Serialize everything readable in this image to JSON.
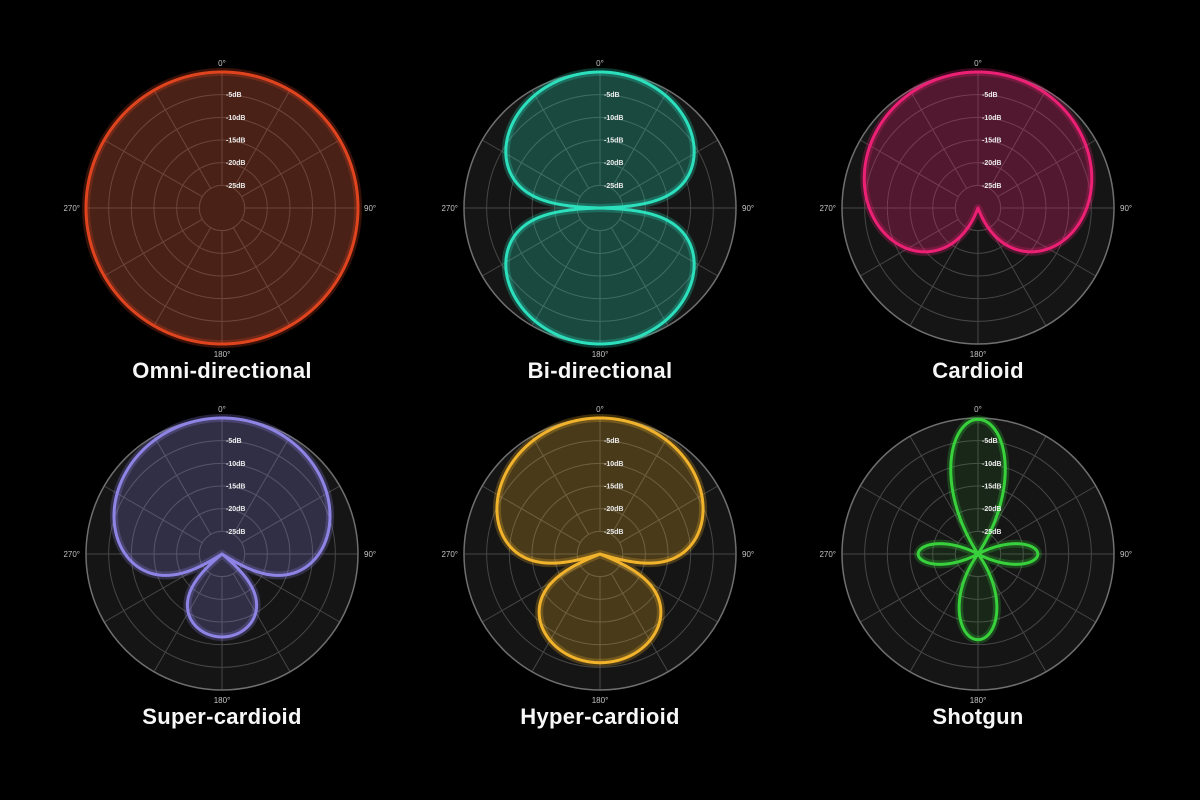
{
  "page": {
    "background_color": "#000000",
    "description": "Six microphone polar pickup patterns arranged in a 3x2 grid"
  },
  "grid_style": {
    "disc_color": "#151515",
    "ring_color": "#464646",
    "outer_ring_color": "#6f6f6f",
    "db_label_color": "#ececec",
    "angle_label_color": "#c4c4c4",
    "rings": 6,
    "spokes_deg_step": 30
  },
  "chart_data": [
    {
      "type": "polar_line",
      "title": "Omni-directional",
      "stroke_color": "#e0441f",
      "fill_opacity": 0.26,
      "pattern": "omni",
      "formula": "r(theta) = 1",
      "polar_params": {
        "a": 1.0,
        "b": 0.0
      },
      "radial_axis": {
        "unit": "dB",
        "min_db": -30,
        "max_db": 0,
        "tick_labels": [
          "-5dB",
          "-10dB",
          "-15dB",
          "-20dB",
          "-25dB"
        ]
      },
      "angle_labels": {
        "top": "0°",
        "right": "90°",
        "bottom": "180°",
        "left": "270°"
      }
    },
    {
      "type": "polar_line",
      "title": "Bi-directional",
      "stroke_color": "#2ce0bd",
      "fill_opacity": 0.26,
      "pattern": "bidirectional",
      "formula": "r(theta) = |cos(theta)|",
      "polar_params": {
        "a": 0.0,
        "b": 1.0
      },
      "radial_axis": {
        "unit": "dB",
        "min_db": -30,
        "max_db": 0,
        "tick_labels": [
          "-5dB",
          "-10dB",
          "-15dB",
          "-20dB",
          "-25dB"
        ]
      },
      "angle_labels": {
        "top": "0°",
        "right": "90°",
        "bottom": "180°",
        "left": "270°"
      }
    },
    {
      "type": "polar_line",
      "title": "Cardioid",
      "stroke_color": "#ec2074",
      "fill_opacity": 0.28,
      "pattern": "cardioid",
      "formula": "r(theta) = 0.5 + 0.5*cos(theta)",
      "polar_params": {
        "a": 0.5,
        "b": 0.5
      },
      "radial_axis": {
        "unit": "dB",
        "min_db": -30,
        "max_db": 0,
        "tick_labels": [
          "-5dB",
          "-10dB",
          "-15dB",
          "-20dB",
          "-25dB"
        ]
      },
      "angle_labels": {
        "top": "0°",
        "right": "90°",
        "bottom": "180°",
        "left": "270°"
      }
    },
    {
      "type": "polar_line",
      "title": "Super-cardioid",
      "stroke_color": "#8e84e6",
      "fill_opacity": 0.24,
      "pattern": "supercardioid",
      "formula": "r(theta) = |0.37 + 0.63*cos(theta)|",
      "polar_params": {
        "a": 0.37,
        "b": 0.63
      },
      "radial_axis": {
        "unit": "dB",
        "min_db": -30,
        "max_db": 0,
        "tick_labels": [
          "-5dB",
          "-10dB",
          "-15dB",
          "-20dB",
          "-25dB"
        ]
      },
      "angle_labels": {
        "top": "0°",
        "right": "90°",
        "bottom": "180°",
        "left": "270°"
      }
    },
    {
      "type": "polar_line",
      "title": "Hyper-cardioid",
      "stroke_color": "#f2b32c",
      "fill_opacity": 0.24,
      "pattern": "hypercardioid",
      "formula": "r(theta) = |0.25 + 0.75*cos(theta)|",
      "polar_params": {
        "a": 0.25,
        "b": 0.75
      },
      "radial_axis": {
        "unit": "dB",
        "min_db": -30,
        "max_db": 0,
        "tick_labels": [
          "-5dB",
          "-10dB",
          "-15dB",
          "-20dB",
          "-25dB"
        ]
      },
      "angle_labels": {
        "top": "0°",
        "right": "90°",
        "bottom": "180°",
        "left": "270°"
      }
    },
    {
      "type": "polar_line",
      "title": "Shotgun",
      "stroke_color": "#38d13c",
      "fill_opacity": 0.1,
      "pattern": "shotgun",
      "formula": "narrow main lobe with side and rear lobes",
      "petals": [
        {
          "angle_deg": 0,
          "amplitude": 0.99,
          "half_width_deg": 33
        },
        {
          "angle_deg": 90,
          "amplitude": 0.44,
          "half_width_deg": 28
        },
        {
          "angle_deg": 180,
          "amplitude": 0.63,
          "half_width_deg": 36
        },
        {
          "angle_deg": 270,
          "amplitude": 0.44,
          "half_width_deg": 28
        }
      ],
      "radial_axis": {
        "unit": "dB",
        "min_db": -30,
        "max_db": 0,
        "tick_labels": [
          "-5dB",
          "-10dB",
          "-15dB",
          "-20dB",
          "-25dB"
        ]
      },
      "angle_labels": {
        "top": "0°",
        "right": "90°",
        "bottom": "180°",
        "left": "270°"
      }
    }
  ]
}
